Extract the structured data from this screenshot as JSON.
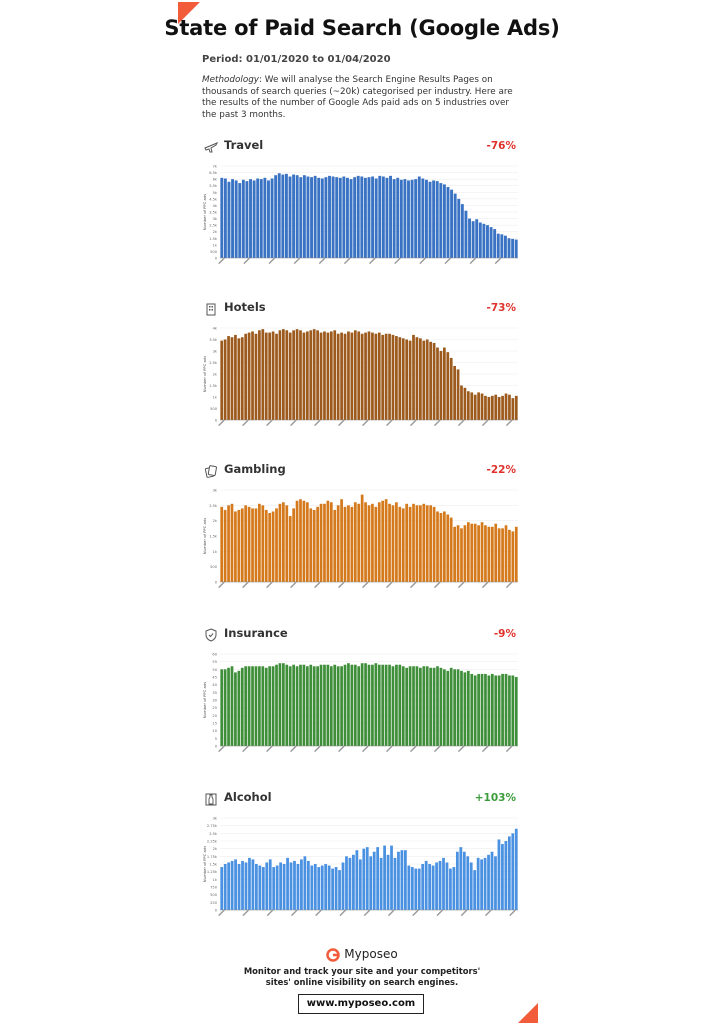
{
  "title": "State of Paid Search (Google Ads)",
  "period": "Period: 01/01/2020 to 01/04/2020",
  "methodology_label": "Methodology",
  "methodology_text": ": We will analyse the Search Engine Results Pages on thousands of search queries (~20k) categorised per industry. Here are the results of the number of Google Ads paid ads on 5 industries over the past 3 months.",
  "footer": {
    "brand": "Myposeo",
    "tagline_line1": "Monitor and track your site and your competitors'",
    "tagline_line2": "sites' online visibility on  search engines.",
    "url": "www.myposeo.com"
  },
  "colors": {
    "accent": "#f25c3b",
    "negative": "#e0322c",
    "positive": "#3a9d3a"
  },
  "chart_data": [
    {
      "type": "bar",
      "industry": "Travel",
      "icon": "plane-icon",
      "change": "-76%",
      "color": "#3a73c4",
      "ylabel": "Number of PPC ads",
      "ylim": [
        0,
        7000
      ],
      "yticks": [
        "0",
        "500",
        "1k",
        "1.5k",
        "2k",
        "2.5k",
        "3k",
        "3.5k",
        "4k",
        "4.5k",
        "5k",
        "5.5k",
        "6k",
        "6.5k",
        "7k"
      ],
      "values": [
        6100,
        6050,
        5800,
        6000,
        5900,
        5700,
        5950,
        5850,
        6000,
        5900,
        6050,
        6000,
        6100,
        5900,
        6050,
        6300,
        6450,
        6350,
        6400,
        6200,
        6350,
        6300,
        6150,
        6300,
        6200,
        6150,
        6250,
        6100,
        6050,
        6150,
        6250,
        6200,
        6150,
        6100,
        6200,
        6100,
        6000,
        6150,
        6250,
        6200,
        6100,
        6150,
        6200,
        6050,
        6250,
        6200,
        6100,
        6250,
        6000,
        6100,
        5950,
        6000,
        5900,
        5950,
        6000,
        6200,
        6050,
        5950,
        5800,
        5900,
        5850,
        5700,
        5600,
        5400,
        5200,
        4900,
        4500,
        4100,
        3600,
        3000,
        2800,
        2950,
        2700,
        2600,
        2500,
        2350,
        2200,
        1850,
        1800,
        1700,
        1500,
        1450,
        1400
      ]
    },
    {
      "type": "bar",
      "industry": "Hotels",
      "icon": "hotel-icon",
      "change": "-73%",
      "color": "#9c5a1d",
      "ylabel": "Number of PPC ads",
      "ylim": [
        0,
        4000
      ],
      "yticks": [
        "0",
        "500",
        "1k",
        "1.5k",
        "2k",
        "2.5k",
        "3k",
        "3.5k",
        "4k"
      ],
      "values": [
        3450,
        3500,
        3650,
        3600,
        3700,
        3550,
        3600,
        3750,
        3800,
        3850,
        3750,
        3900,
        3950,
        3800,
        3800,
        3850,
        3750,
        3900,
        3950,
        3900,
        3800,
        3900,
        3950,
        3900,
        3800,
        3850,
        3900,
        3950,
        3900,
        3800,
        3850,
        3800,
        3850,
        3900,
        3750,
        3800,
        3750,
        3850,
        3800,
        3900,
        3850,
        3750,
        3800,
        3850,
        3800,
        3750,
        3800,
        3700,
        3750,
        3750,
        3700,
        3650,
        3600,
        3550,
        3500,
        3450,
        3700,
        3600,
        3550,
        3450,
        3500,
        3400,
        3350,
        3150,
        3000,
        3150,
        2950,
        2700,
        2350,
        2200,
        1500,
        1400,
        1250,
        1200,
        1100,
        1200,
        1150,
        1050,
        1000,
        1050,
        1100,
        1000,
        1050,
        1150,
        1100,
        950,
        1050
      ]
    },
    {
      "type": "bar",
      "industry": "Gambling",
      "icon": "cards-icon",
      "change": "-22%",
      "color": "#d57a1c",
      "ylabel": "Number of PPC ads",
      "ylim": [
        0,
        3000
      ],
      "yticks": [
        "0",
        "500",
        "1k",
        "1.5k",
        "2k",
        "2.5k",
        "3k"
      ],
      "values": [
        2450,
        2350,
        2500,
        2550,
        2300,
        2350,
        2400,
        2500,
        2450,
        2400,
        2400,
        2550,
        2500,
        2350,
        2250,
        2300,
        2400,
        2550,
        2600,
        2500,
        2150,
        2400,
        2650,
        2700,
        2650,
        2600,
        2400,
        2350,
        2450,
        2550,
        2550,
        2650,
        2600,
        2350,
        2500,
        2700,
        2450,
        2500,
        2450,
        2600,
        2550,
        2850,
        2600,
        2500,
        2550,
        2450,
        2600,
        2650,
        2700,
        2550,
        2500,
        2600,
        2450,
        2400,
        2550,
        2450,
        2550,
        2500,
        2500,
        2550,
        2500,
        2500,
        2450,
        2300,
        2250,
        2300,
        2200,
        2100,
        1800,
        1850,
        1750,
        1850,
        1950,
        1900,
        1900,
        1850,
        1950,
        1850,
        1800,
        1800,
        1900,
        1750,
        1750,
        1850,
        1700,
        1650,
        1800
      ]
    },
    {
      "type": "bar",
      "industry": "Insurance",
      "icon": "shield-icon",
      "change": "-9%",
      "color": "#3f8f3a",
      "ylabel": "Number of PPC ads",
      "ylim": [
        0,
        60
      ],
      "yticks": [
        "0",
        "5",
        "10",
        "15",
        "20",
        "25",
        "30",
        "35",
        "40",
        "45",
        "50",
        "55",
        "60"
      ],
      "values": [
        50,
        50,
        51,
        52,
        48,
        49,
        51,
        52,
        52,
        52,
        52,
        52,
        52,
        51,
        52,
        52,
        53,
        54,
        54,
        53,
        52,
        53,
        52,
        53,
        53,
        52,
        53,
        52,
        52,
        53,
        53,
        53,
        52,
        53,
        52,
        52,
        53,
        54,
        53,
        53,
        52,
        54,
        54,
        53,
        53,
        54,
        53,
        53,
        53,
        53,
        52,
        53,
        53,
        52,
        51,
        52,
        52,
        52,
        51,
        52,
        52,
        51,
        51,
        52,
        51,
        50,
        49,
        51,
        50,
        50,
        49,
        48,
        49,
        47,
        46,
        47,
        47,
        47,
        46,
        47,
        46,
        46,
        47,
        47,
        46,
        46,
        45
      ]
    },
    {
      "type": "bar",
      "industry": "Alcohol",
      "icon": "bottle-icon",
      "change": "+103%",
      "color": "#4a91e2",
      "ylabel": "Number of PPC ads",
      "ylim": [
        0,
        3000
      ],
      "yticks": [
        "0",
        "250",
        "500",
        "750",
        "1k",
        "1.25k",
        "1.5k",
        "1.75k",
        "2k",
        "2.25k",
        "2.5k",
        "2.75k",
        "3k"
      ],
      "values": [
        1400,
        1500,
        1550,
        1600,
        1650,
        1500,
        1600,
        1550,
        1700,
        1650,
        1500,
        1450,
        1400,
        1550,
        1650,
        1400,
        1450,
        1550,
        1500,
        1700,
        1550,
        1600,
        1500,
        1650,
        1750,
        1600,
        1450,
        1500,
        1400,
        1450,
        1500,
        1450,
        1350,
        1400,
        1300,
        1550,
        1750,
        1700,
        1800,
        1950,
        1650,
        2000,
        2050,
        1750,
        1900,
        2050,
        1700,
        2100,
        1800,
        2100,
        1700,
        1900,
        1950,
        1950,
        1450,
        1400,
        1350,
        1350,
        1500,
        1600,
        1500,
        1450,
        1550,
        1600,
        1700,
        1550,
        1350,
        1400,
        1900,
        2050,
        1900,
        1750,
        1550,
        1300,
        1700,
        1650,
        1700,
        1800,
        1900,
        1750,
        2300,
        2150,
        2250,
        2400,
        2500,
        2650
      ]
    }
  ]
}
